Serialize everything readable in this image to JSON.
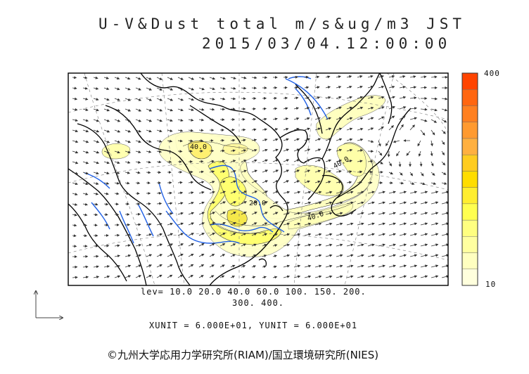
{
  "header": {
    "title_line1": "U-V&Dust total m/s&ug/m3 JST",
    "title_line2": "2015/03/04.12:00:00"
  },
  "levels": {
    "line1": "lev= 10.0 20.0 40.0 60.0 100. 150. 200.",
    "line2": "300. 400."
  },
  "units_label": "XUNIT = 6.000E+01, YUNIT = 6.000E+01",
  "colorbar": {
    "max_label": "400",
    "min_label": "10",
    "colors": [
      "#ffffdd",
      "#ffffc0",
      "#ffffa0",
      "#ffff80",
      "#ffff50",
      "#ffee30",
      "#ffdd00",
      "#ffcc20",
      "#ffb040",
      "#ff9a30",
      "#ff8020",
      "#ff6610",
      "#ff4400"
    ]
  },
  "contour_labels": [
    "40.0",
    "40.0",
    "40.0",
    "20.0"
  ],
  "copyright": "©九州大学応用力学研究所(RIAM)/国立環境研究所(NIES)",
  "colors": {
    "dust_low": "#ffffc0",
    "dust_mid": "#ffff70",
    "dust_high": "#f0e030",
    "river": "#1e5fe6",
    "coast": "#000000"
  }
}
